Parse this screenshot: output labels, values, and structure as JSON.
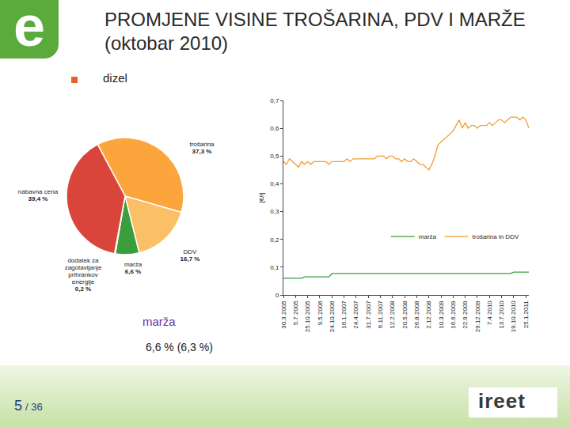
{
  "slide": {
    "title": "PROMJENE VISINE TROŠARINA, PDV I MARŽE (oktobar 2010)",
    "bullet": "dizel",
    "note": {
      "label": "marža",
      "text": "6,6 % (6,3 %)"
    },
    "page": "5",
    "page_total": "/ 36",
    "logo_left": "e",
    "logo_right": "ireet"
  },
  "chart_data": [
    {
      "type": "pie",
      "categories": [
        "trošarina",
        "DDV",
        "marža",
        "dodatek za zagotavljanje prihrankov energije",
        "nabavna cena"
      ],
      "values": [
        37.3,
        16.7,
        6.6,
        0.2,
        39.4
      ],
      "value_labels": [
        "37,3 %",
        "16,7 %",
        "6,6 %",
        "0,2 %",
        "39,4 %"
      ],
      "colors": [
        "#fba53c",
        "#fbbf66",
        "#3c9d3c",
        "#2e7d32",
        "#d9443b"
      ],
      "data_labels": true
    },
    {
      "type": "line",
      "y_label": "[€/l]",
      "categories": [
        "30.3.2005",
        null,
        null,
        null,
        "5.7.2005",
        null,
        null,
        null,
        "25.10.2005",
        null,
        null,
        null,
        "9.5.2006",
        null,
        null,
        null,
        "24.10.2006",
        null,
        null,
        null,
        "16.1.2007",
        null,
        null,
        null,
        "24.4.2007",
        null,
        null,
        null,
        "31.7.2007",
        null,
        null,
        null,
        "6.11.2007",
        null,
        null,
        null,
        "12.2.2008",
        null,
        null,
        null,
        "20.5.2008",
        null,
        null,
        null,
        "26.8.2008",
        null,
        null,
        null,
        "2.12.2008",
        null,
        null,
        null,
        "10.3.2009",
        null,
        null,
        null,
        "16.6.2009",
        null,
        null,
        null,
        "22.9.2009",
        null,
        null,
        null,
        "29.12.2009",
        null,
        null,
        null,
        "7.4.2010",
        null,
        null,
        null,
        "13.7.2010",
        null,
        null,
        null,
        "19.10.2010",
        null,
        null,
        null,
        "25.1.2011",
        null
      ],
      "series": [
        {
          "name": "marža",
          "color": "#3a9e3a",
          "values": [
            0.06,
            0.06,
            0.06,
            0.06,
            0.06,
            0.06,
            0.06,
            0.065,
            0.065,
            0.065,
            0.065,
            0.065,
            0.065,
            0.065,
            0.065,
            0.065,
            0.077,
            0.077,
            0.077,
            0.077,
            0.077,
            0.077,
            0.077,
            0.077,
            0.077,
            0.077,
            0.077,
            0.077,
            0.077,
            0.077,
            0.077,
            0.077,
            0.077,
            0.077,
            0.077,
            0.077,
            0.077,
            0.077,
            0.077,
            0.077,
            0.077,
            0.077,
            0.077,
            0.077,
            0.077,
            0.077,
            0.077,
            0.077,
            0.077,
            0.077,
            0.077,
            0.077,
            0.077,
            0.077,
            0.077,
            0.077,
            0.077,
            0.077,
            0.077,
            0.077,
            0.077,
            0.077,
            0.077,
            0.077,
            0.077,
            0.077,
            0.077,
            0.077,
            0.077,
            0.077,
            0.077,
            0.077,
            0.077,
            0.077,
            0.077,
            0.077,
            0.082,
            0.082,
            0.082,
            0.082,
            0.082,
            0.082
          ]
        },
        {
          "name": "trošarina in DDV",
          "color": "#f39c33",
          "values": [
            0.48,
            0.47,
            0.49,
            0.48,
            0.47,
            0.46,
            0.48,
            0.47,
            0.48,
            0.47,
            0.48,
            0.48,
            0.48,
            0.48,
            0.48,
            0.47,
            0.48,
            0.48,
            0.48,
            0.48,
            0.48,
            0.49,
            0.48,
            0.49,
            0.49,
            0.49,
            0.49,
            0.49,
            0.49,
            0.49,
            0.49,
            0.5,
            0.5,
            0.5,
            0.49,
            0.5,
            0.5,
            0.49,
            0.49,
            0.48,
            0.49,
            0.48,
            0.48,
            0.49,
            0.48,
            0.47,
            0.47,
            0.46,
            0.45,
            0.47,
            0.5,
            0.54,
            0.55,
            0.56,
            0.57,
            0.58,
            0.59,
            0.61,
            0.63,
            0.6,
            0.62,
            0.6,
            0.61,
            0.61,
            0.6,
            0.61,
            0.61,
            0.61,
            0.62,
            0.61,
            0.62,
            0.63,
            0.63,
            0.62,
            0.63,
            0.64,
            0.64,
            0.64,
            0.63,
            0.64,
            0.63,
            0.6
          ]
        }
      ],
      "ylim": [
        0,
        0.7
      ],
      "yticks": [
        0,
        {
          "value": 0.1,
          "label": "0,1"
        },
        {
          "value": 0.2,
          "label": "0,2"
        },
        {
          "value": 0.3,
          "label": "0,3"
        },
        {
          "value": 0.4,
          "label": "0,4"
        },
        {
          "value": 0.5,
          "label": "0,5"
        },
        {
          "value": 0.6,
          "label": "0,6"
        },
        {
          "value": 0.7,
          "label": "0,7"
        }
      ],
      "grid": false,
      "legend": "lower right"
    }
  ]
}
